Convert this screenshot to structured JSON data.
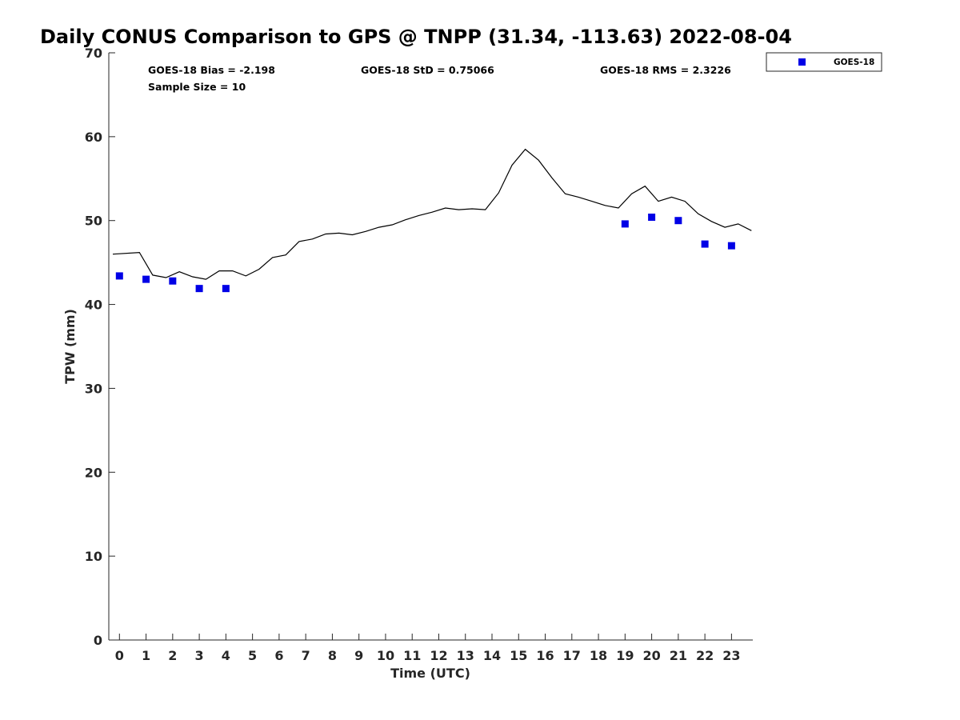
{
  "chart_data": {
    "type": "scatter",
    "title": "Daily CONUS Comparison to GPS @ TNPP (31.34, -113.63) 2022-08-04",
    "xlabel": "Time (UTC)",
    "ylabel": "TPW (mm)",
    "xlim": [
      -0.4,
      23.8
    ],
    "ylim": [
      0,
      70
    ],
    "xticks": [
      0,
      1,
      2,
      3,
      4,
      5,
      6,
      7,
      8,
      9,
      10,
      11,
      12,
      13,
      14,
      15,
      16,
      17,
      18,
      19,
      20,
      21,
      22,
      23
    ],
    "yticks": [
      0,
      10,
      20,
      30,
      40,
      50,
      60,
      70
    ],
    "grid": false,
    "legend_position": "top-right outside",
    "stats": {
      "bias": "GOES-18 Bias = -2.198",
      "std": "GOES-18 StD = 0.75066",
      "rms": "GOES-18 RMS = 2.3226",
      "sample": "Sample Size = 10"
    },
    "series": [
      {
        "name": "",
        "kind": "line",
        "color": "#000000",
        "x": [
          -0.25,
          0.75,
          1.25,
          1.75,
          2.25,
          2.75,
          3.25,
          3.75,
          4.25,
          4.75,
          5.25,
          5.75,
          6.25,
          6.75,
          7.25,
          7.75,
          8.25,
          8.75,
          9.25,
          9.75,
          10.25,
          10.75,
          11.25,
          11.75,
          12.25,
          12.75,
          13.25,
          13.75,
          14.25,
          14.75,
          15.25,
          15.75,
          16.25,
          16.75,
          17.25,
          17.75,
          18.25,
          18.75,
          19.25,
          19.75,
          20.25,
          20.75,
          21.25,
          21.75,
          22.25,
          22.75,
          23.25,
          23.75
        ],
        "y": [
          46.0,
          46.2,
          43.5,
          43.2,
          43.9,
          43.3,
          43.0,
          44.0,
          44.0,
          43.4,
          44.2,
          45.6,
          45.9,
          47.5,
          47.8,
          48.4,
          48.5,
          48.3,
          48.7,
          49.2,
          49.5,
          50.1,
          50.6,
          51.0,
          51.5,
          51.3,
          51.4,
          51.3,
          53.3,
          56.6,
          58.5,
          57.2,
          55.1,
          53.2,
          52.8,
          52.3,
          51.8,
          51.5,
          53.2,
          54.1,
          52.3,
          52.8,
          52.3,
          50.8,
          49.9,
          49.2,
          49.6,
          48.8
        ]
      },
      {
        "name": "GOES-18",
        "kind": "marker",
        "color": "#0000e6",
        "x": [
          0,
          1,
          2,
          3,
          4,
          19,
          20,
          21,
          22,
          23
        ],
        "y": [
          43.4,
          43.0,
          42.8,
          41.9,
          41.9,
          49.6,
          50.4,
          50.0,
          47.2,
          47.0
        ]
      }
    ]
  }
}
